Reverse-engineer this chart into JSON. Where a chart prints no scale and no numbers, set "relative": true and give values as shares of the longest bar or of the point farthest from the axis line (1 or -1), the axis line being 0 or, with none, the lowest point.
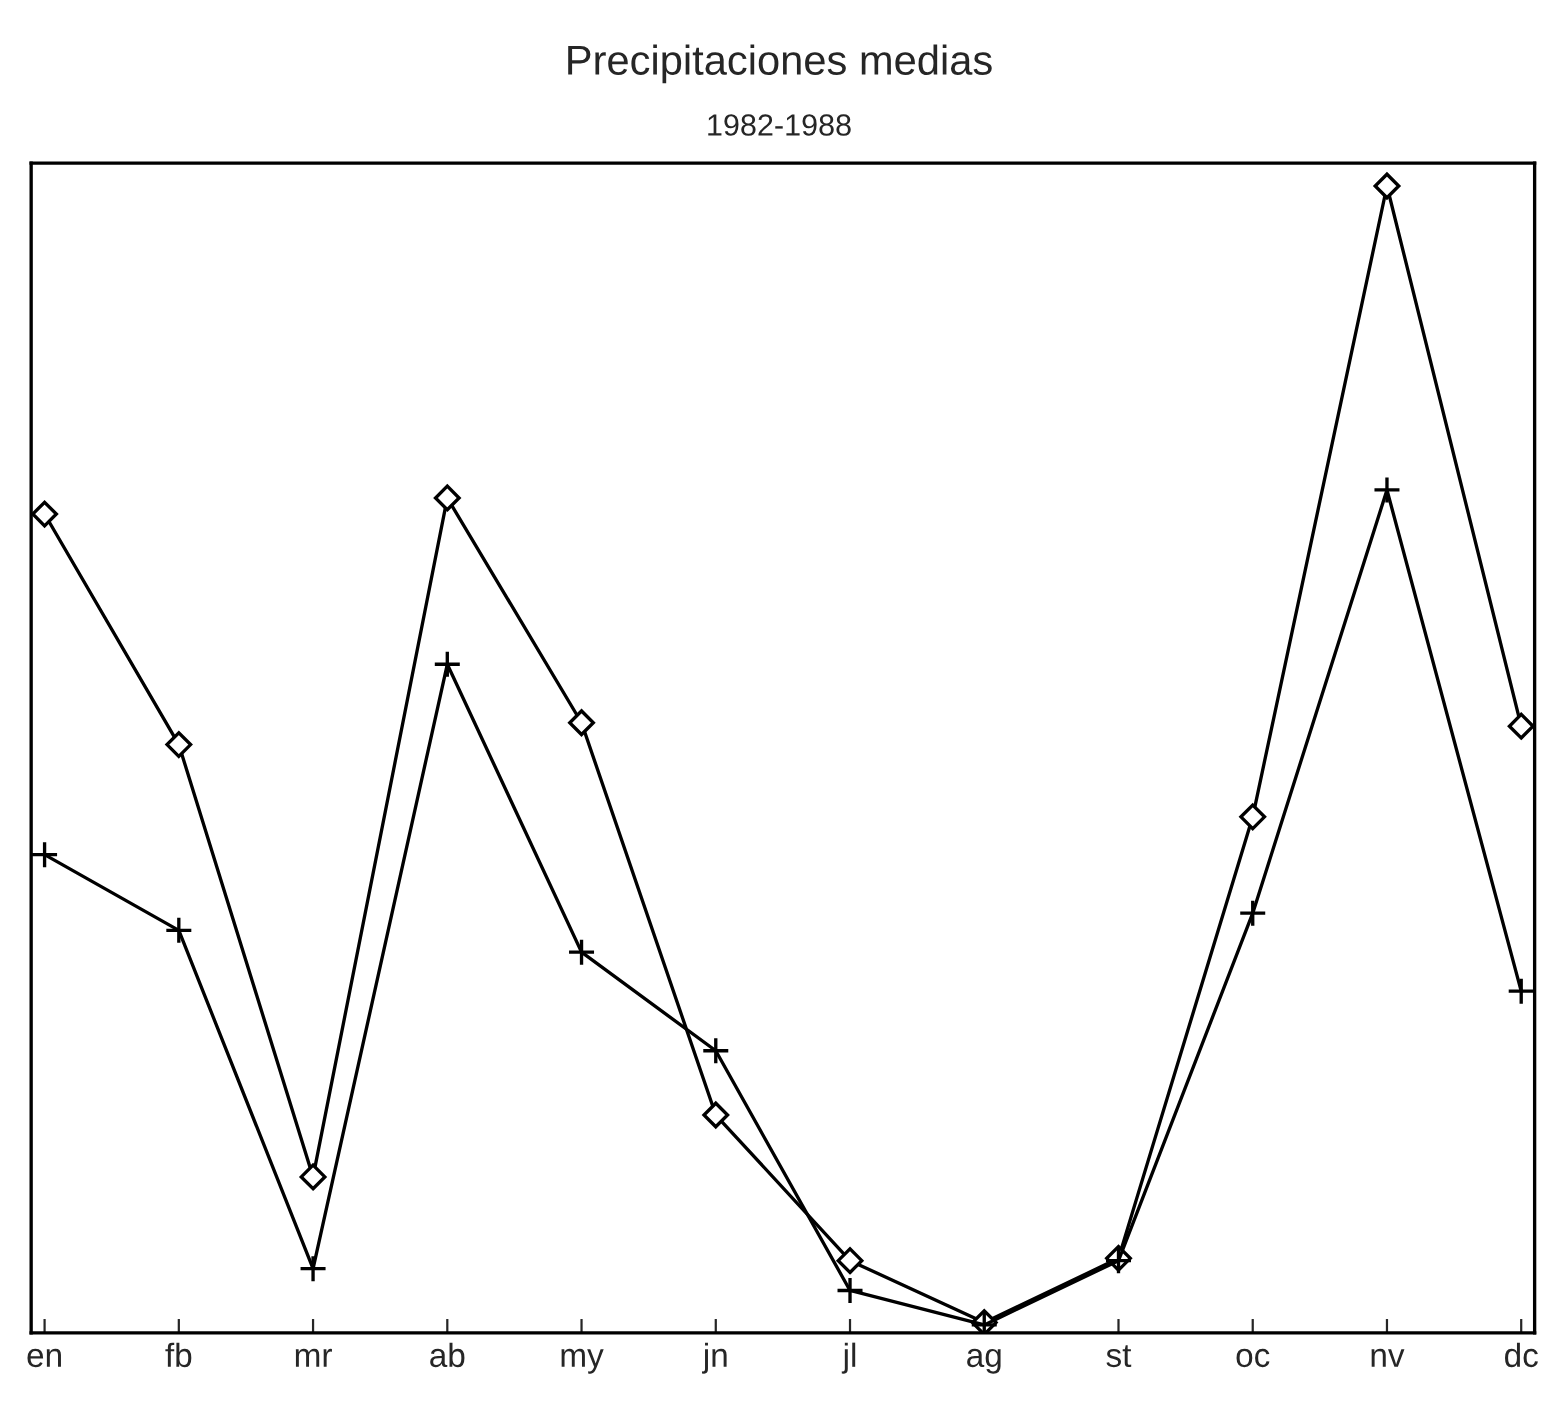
{
  "chart_data": {
    "type": "line",
    "title": "Precipitaciones medias",
    "subtitle": "1982-1988",
    "categories": [
      "en",
      "fb",
      "mr",
      "ab",
      "my",
      "jn",
      "jl",
      "ag",
      "st",
      "oc",
      "nv",
      "dc"
    ],
    "relative": true,
    "grid": false,
    "tick_labels": "x",
    "line_style": "solid",
    "series": [
      {
        "color": "#000000",
        "marker": "diamond",
        "values": [
          0.714,
          0.513,
          0.136,
          0.728,
          0.532,
          0.19,
          0.063,
          0.009,
          0.065,
          0.45,
          1,
          0.529
        ]
      },
      {
        "color": "#000000",
        "marker": "cross",
        "values": [
          0.417,
          0.351,
          0.056,
          0.583,
          0.332,
          0.246,
          0.037,
          0.007,
          0.063,
          0.366,
          0.735,
          0.298
        ]
      }
    ]
  }
}
